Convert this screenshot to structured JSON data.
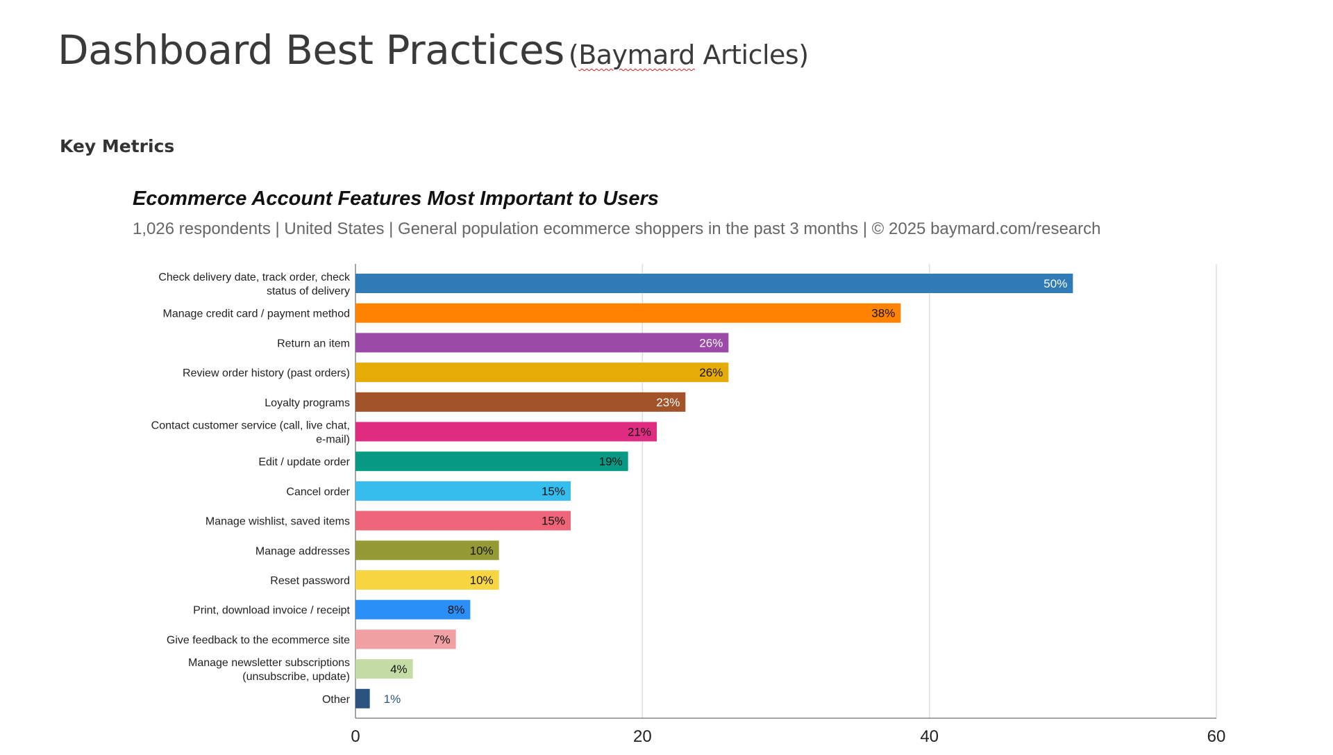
{
  "slide": {
    "title": "Dashboard Best Practices",
    "title_source_prefix": "(",
    "title_source_name": "Baymard",
    "title_source_suffix": " Articles)",
    "section_label": "Key Metrics"
  },
  "chart_data": {
    "type": "bar",
    "orientation": "horizontal",
    "title": "Ecommerce Account Features Most Important to Users",
    "subtitle": "1,026 respondents  |  United States  |  General population ecommerce shoppers in the past 3 months | © 2025 baymard.com/research",
    "categories": [
      "Check delivery date, track order, check status of delivery",
      "Manage credit card / payment method",
      "Return an item",
      "Review order history (past orders)",
      "Loyalty programs",
      "Contact customer service (call, live chat, e-mail)",
      "Edit / update order",
      "Cancel order",
      "Manage wishlist, saved items",
      "Manage addresses",
      "Reset password",
      "Print, download invoice / receipt",
      "Give feedback to the ecommerce site",
      "Manage newsletter subscriptions (unsubscribe, update)",
      "Other"
    ],
    "category_lines": [
      [
        "Check delivery date, track order, check",
        "status of delivery"
      ],
      [
        "Manage credit card / payment method"
      ],
      [
        "Return an item"
      ],
      [
        "Review order history (past orders)"
      ],
      [
        "Loyalty programs"
      ],
      [
        "Contact customer service (call, live chat,",
        "e-mail)"
      ],
      [
        "Edit / update order"
      ],
      [
        "Cancel order"
      ],
      [
        "Manage wishlist, saved items"
      ],
      [
        "Manage addresses"
      ],
      [
        "Reset password"
      ],
      [
        "Print, download invoice / receipt"
      ],
      [
        "Give feedback to the ecommerce site"
      ],
      [
        "Manage newsletter subscriptions",
        "(unsubscribe, update)"
      ],
      [
        "Other"
      ]
    ],
    "values": [
      50,
      38,
      26,
      26,
      23,
      21,
      19,
      15,
      15,
      10,
      10,
      8,
      7,
      4,
      1
    ],
    "value_labels": [
      "50%",
      "38%",
      "26%",
      "26%",
      "23%",
      "21%",
      "19%",
      "15%",
      "15%",
      "10%",
      "10%",
      "8%",
      "7%",
      "4%",
      "1%"
    ],
    "colors": [
      "#2e7bb8",
      "#ff8200",
      "#9b4aa8",
      "#e6ab06",
      "#a3532a",
      "#e02d84",
      "#069a85",
      "#35bded",
      "#ee6478",
      "#969a34",
      "#f8d642",
      "#2a8ff7",
      "#f1a0a4",
      "#c5dca4",
      "#2b5380"
    ],
    "label_colors": [
      "#ffffff",
      "#111111",
      "#ffffff",
      "#111111",
      "#ffffff",
      "#111111",
      "#111111",
      "#111111",
      "#111111",
      "#111111",
      "#111111",
      "#111111",
      "#111111",
      "#111111",
      "#2b5380"
    ],
    "xlim": [
      0,
      60
    ],
    "xticks": [
      0,
      20,
      40,
      60
    ],
    "grid": true
  }
}
